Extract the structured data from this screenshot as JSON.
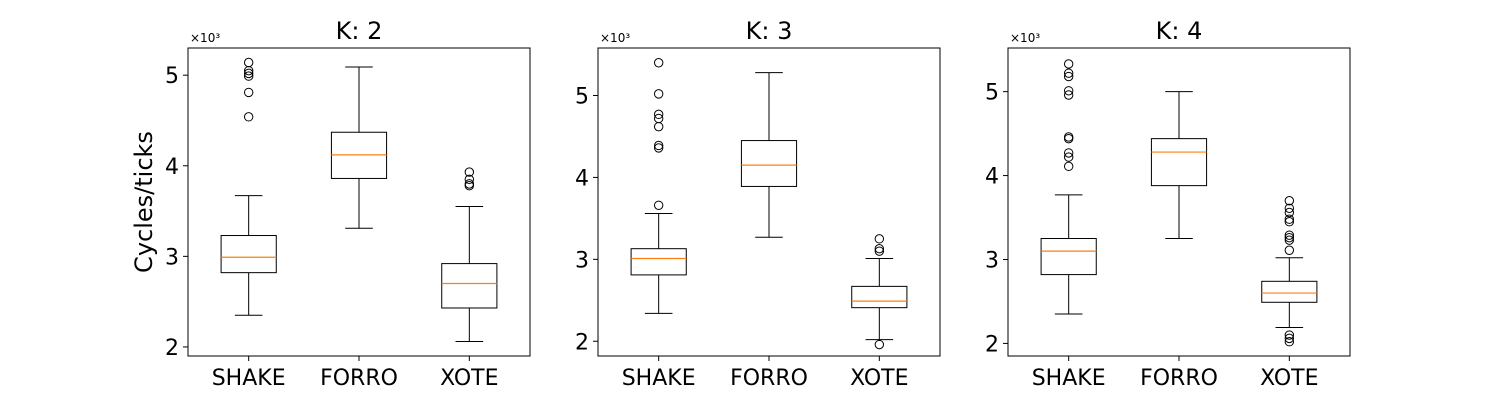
{
  "figure": {
    "ylabel": "Cycles/ticks"
  },
  "chart_data": [
    {
      "type": "box",
      "title": "K: 2",
      "xlabel": "",
      "ylabel": "Cycles/ticks",
      "yscale_label": "×10³",
      "categories": [
        "SHAKE",
        "FORRO",
        "XOTE"
      ],
      "yticks": [
        "2",
        "3",
        "4",
        "5"
      ],
      "ylim": [
        1900,
        5300
      ],
      "boxes": [
        {
          "name": "SHAKE",
          "whisker_low": 2350,
          "q1": 2820,
          "median": 2990,
          "q3": 3230,
          "whisker_high": 3670,
          "outliers": [
            4540,
            4810,
            4990,
            5020,
            5050,
            5140
          ]
        },
        {
          "name": "FORRO",
          "whisker_low": 3310,
          "q1": 3860,
          "median": 4120,
          "q3": 4370,
          "whisker_high": 5090,
          "outliers": []
        },
        {
          "name": "XOTE",
          "whisker_low": 2060,
          "q1": 2430,
          "median": 2700,
          "q3": 2920,
          "whisker_high": 3550,
          "outliers": [
            3780,
            3800,
            3850,
            3930
          ]
        }
      ]
    },
    {
      "type": "box",
      "title": "K: 3",
      "xlabel": "",
      "ylabel": "",
      "yscale_label": "×10³",
      "categories": [
        "SHAKE",
        "FORRO",
        "XOTE"
      ],
      "yticks": [
        "2",
        "3",
        "4",
        "5"
      ],
      "ylim": [
        1820,
        5580
      ],
      "boxes": [
        {
          "name": "SHAKE",
          "whisker_low": 2340,
          "q1": 2810,
          "median": 3010,
          "q3": 3130,
          "whisker_high": 3560,
          "outliers": [
            3660,
            4360,
            4390,
            4620,
            4720,
            4770,
            5020,
            5400
          ]
        },
        {
          "name": "FORRO",
          "whisker_low": 3270,
          "q1": 3890,
          "median": 4150,
          "q3": 4450,
          "whisker_high": 5280,
          "outliers": []
        },
        {
          "name": "XOTE",
          "whisker_low": 2020,
          "q1": 2410,
          "median": 2490,
          "q3": 2670,
          "whisker_high": 3010,
          "outliers": [
            1960,
            3100,
            3130,
            3250
          ]
        }
      ]
    },
    {
      "type": "box",
      "title": "K: 4",
      "xlabel": "",
      "ylabel": "",
      "yscale_label": "×10³",
      "categories": [
        "SHAKE",
        "FORRO",
        "XOTE"
      ],
      "yticks": [
        "2",
        "3",
        "4",
        "5"
      ],
      "ylim": [
        1850,
        5520
      ],
      "boxes": [
        {
          "name": "SHAKE",
          "whisker_low": 2350,
          "q1": 2820,
          "median": 3100,
          "q3": 3250,
          "whisker_high": 3770,
          "outliers": [
            4110,
            4220,
            4270,
            4440,
            4460,
            4960,
            5010,
            5180,
            5220,
            5330
          ]
        },
        {
          "name": "FORRO",
          "whisker_low": 3250,
          "q1": 3880,
          "median": 4280,
          "q3": 4440,
          "whisker_high": 5000,
          "outliers": []
        },
        {
          "name": "XOTE",
          "whisker_low": 2190,
          "q1": 2490,
          "median": 2600,
          "q3": 2740,
          "whisker_high": 3020,
          "outliers": [
            2020,
            2060,
            2100,
            3110,
            3230,
            3260,
            3290,
            3450,
            3480,
            3560,
            3610,
            3700
          ]
        }
      ]
    }
  ]
}
